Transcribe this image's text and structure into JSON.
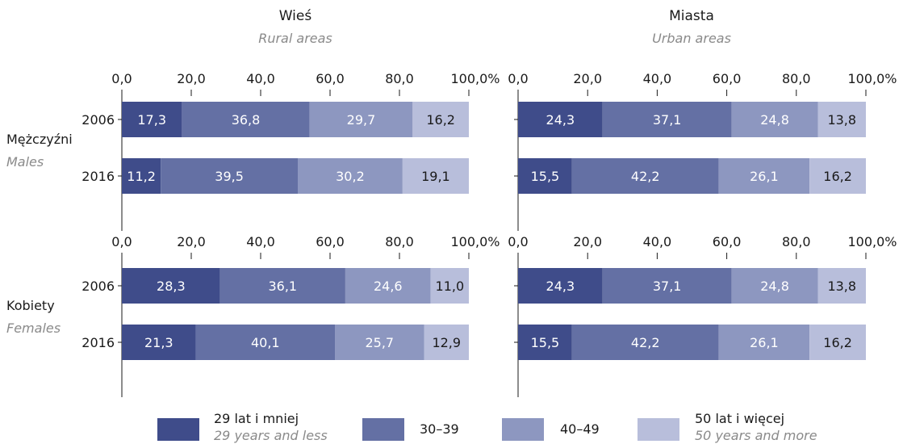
{
  "chart_data": {
    "type": "bar",
    "stacked": "percent",
    "orientation": "horizontal",
    "colors": [
      "#3f4c8a",
      "#6470a4",
      "#8d97c0",
      "#b8bedb"
    ],
    "categories": [
      "2006",
      "2016"
    ],
    "ticks": [
      "0,0",
      "20,0",
      "40,0",
      "60,0",
      "80,0",
      "100,0%"
    ],
    "xlim": [
      0,
      100
    ],
    "columns": [
      {
        "title": "Wieś",
        "subtitle": "Rural areas"
      },
      {
        "title": "Miasta",
        "subtitle": "Urban areas"
      }
    ],
    "groups": [
      {
        "label": "Mężczyźni",
        "sublabel": "Males"
      },
      {
        "label": "Kobiety",
        "sublabel": "Females"
      }
    ],
    "panels": [
      {
        "column": 0,
        "group": 0,
        "rows": [
          {
            "year": "2006",
            "values": [
              17.3,
              36.8,
              29.7,
              16.2
            ],
            "labels": [
              "17,3",
              "36,8",
              "29,7",
              "16,2"
            ]
          },
          {
            "year": "2016",
            "values": [
              11.2,
              39.5,
              30.2,
              19.1
            ],
            "labels": [
              "11,2",
              "39,5",
              "30,2",
              "19,1"
            ]
          }
        ]
      },
      {
        "column": 1,
        "group": 0,
        "rows": [
          {
            "year": "2006",
            "values": [
              24.3,
              37.1,
              24.8,
              13.8
            ],
            "labels": [
              "24,3",
              "37,1",
              "24,8",
              "13,8"
            ]
          },
          {
            "year": "2016",
            "values": [
              15.5,
              42.2,
              26.1,
              16.2
            ],
            "labels": [
              "15,5",
              "42,2",
              "26,1",
              "16,2"
            ]
          }
        ]
      },
      {
        "column": 0,
        "group": 1,
        "rows": [
          {
            "year": "2006",
            "values": [
              28.3,
              36.1,
              24.6,
              11.0
            ],
            "labels": [
              "28,3",
              "36,1",
              "24,6",
              "11,0"
            ]
          },
          {
            "year": "2016",
            "values": [
              21.3,
              40.1,
              25.7,
              12.9
            ],
            "labels": [
              "21,3",
              "40,1",
              "25,7",
              "12,9"
            ]
          }
        ]
      },
      {
        "column": 1,
        "group": 1,
        "rows": [
          {
            "year": "2006",
            "values": [
              24.3,
              37.1,
              24.8,
              13.8
            ],
            "labels": [
              "24,3",
              "37,1",
              "24,8",
              "13,8"
            ]
          },
          {
            "year": "2016",
            "values": [
              15.5,
              42.2,
              26.1,
              16.2
            ],
            "labels": [
              "15,5",
              "42,2",
              "26,1",
              "16,2"
            ]
          }
        ]
      }
    ],
    "legend": {
      "placement": "bottom",
      "entries": [
        {
          "label": "29 lat i mniej",
          "sublabel": "29 years and less"
        },
        {
          "label": "30–39",
          "sublabel": ""
        },
        {
          "label": "40–49",
          "sublabel": ""
        },
        {
          "label": "50 lat i więcej",
          "sublabel": "50 years and more"
        }
      ]
    }
  }
}
